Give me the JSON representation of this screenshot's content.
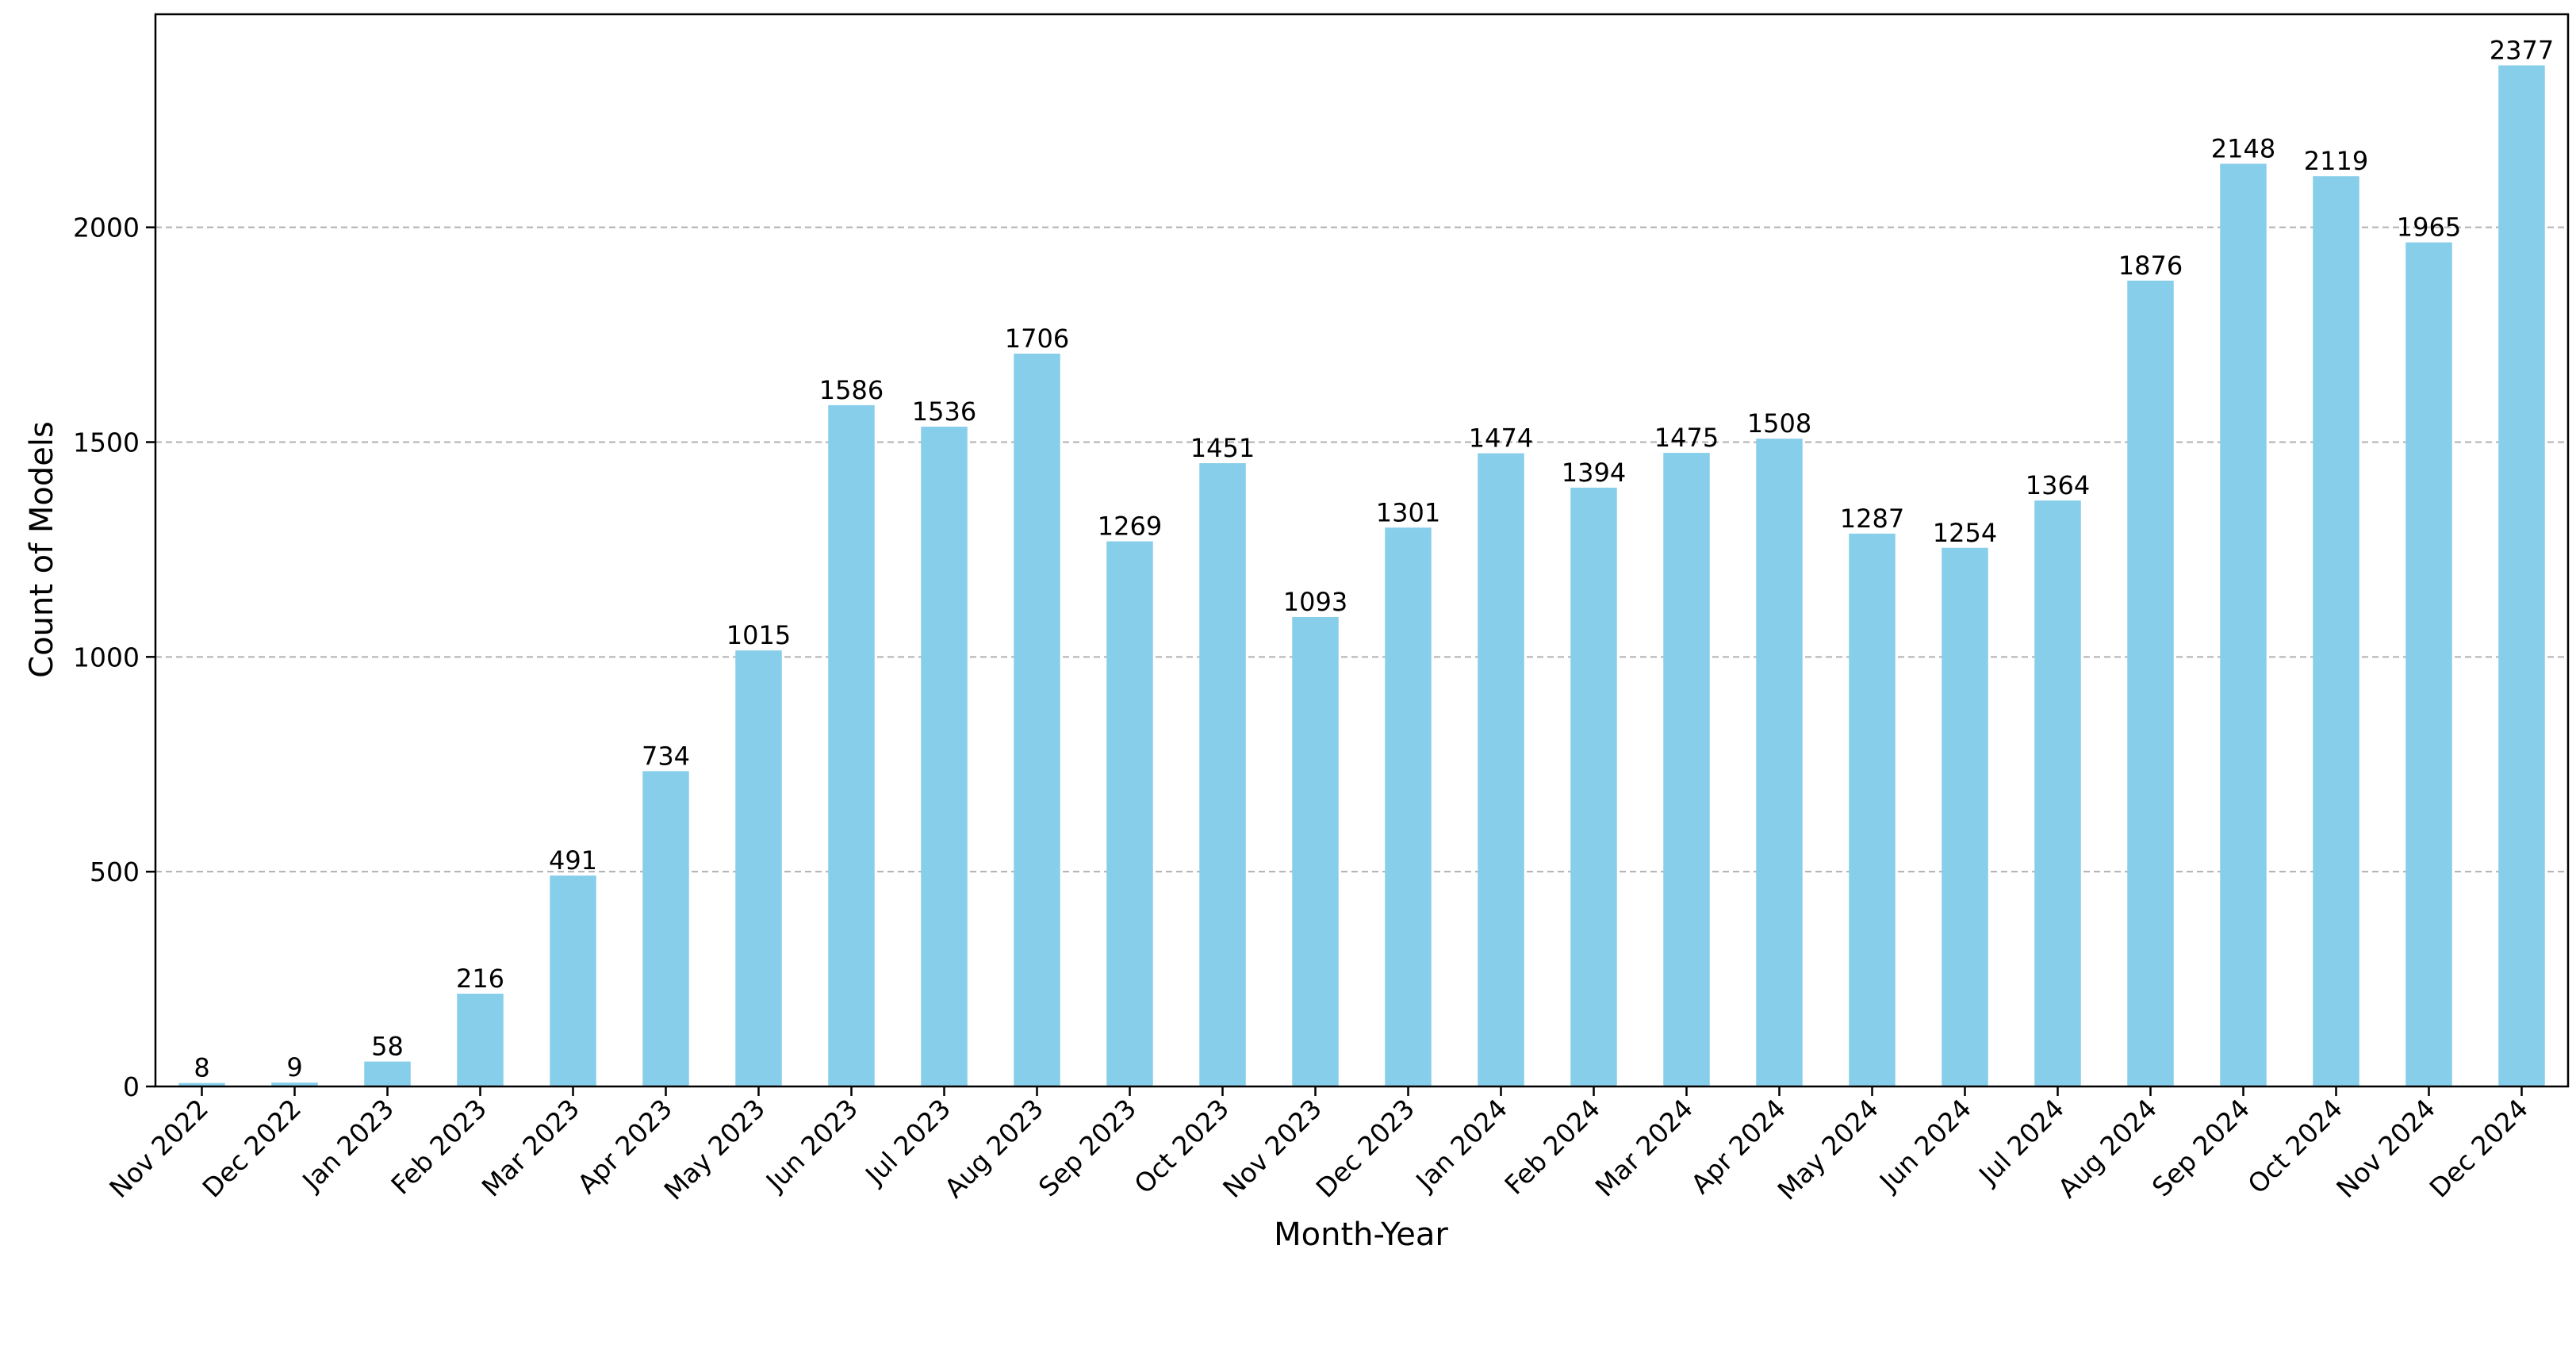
{
  "chart_data": {
    "type": "bar",
    "title": "",
    "xlabel": "Month-Year",
    "ylabel": "Count of Models",
    "categories": [
      "Nov 2022",
      "Dec 2022",
      "Jan 2023",
      "Feb 2023",
      "Mar 2023",
      "Apr 2023",
      "May 2023",
      "Jun 2023",
      "Jul 2023",
      "Aug 2023",
      "Sep 2023",
      "Oct 2023",
      "Nov 2023",
      "Dec 2023",
      "Jan 2024",
      "Feb 2024",
      "Mar 2024",
      "Apr 2024",
      "May 2024",
      "Jun 2024",
      "Jul 2024",
      "Aug 2024",
      "Sep 2024",
      "Oct 2024",
      "Nov 2024",
      "Dec 2024"
    ],
    "values": [
      8,
      9,
      58,
      216,
      491,
      734,
      1015,
      1586,
      1536,
      1706,
      1269,
      1451,
      1093,
      1301,
      1474,
      1394,
      1475,
      1508,
      1287,
      1254,
      1364,
      1876,
      2148,
      2119,
      1965,
      2377
    ],
    "ylim": [
      0,
      2496
    ],
    "yticks": [
      0,
      500,
      1000,
      1500,
      2000
    ],
    "grid": "horizontal, dashed",
    "bar_color": "#87ceeb",
    "data_labels": true
  }
}
